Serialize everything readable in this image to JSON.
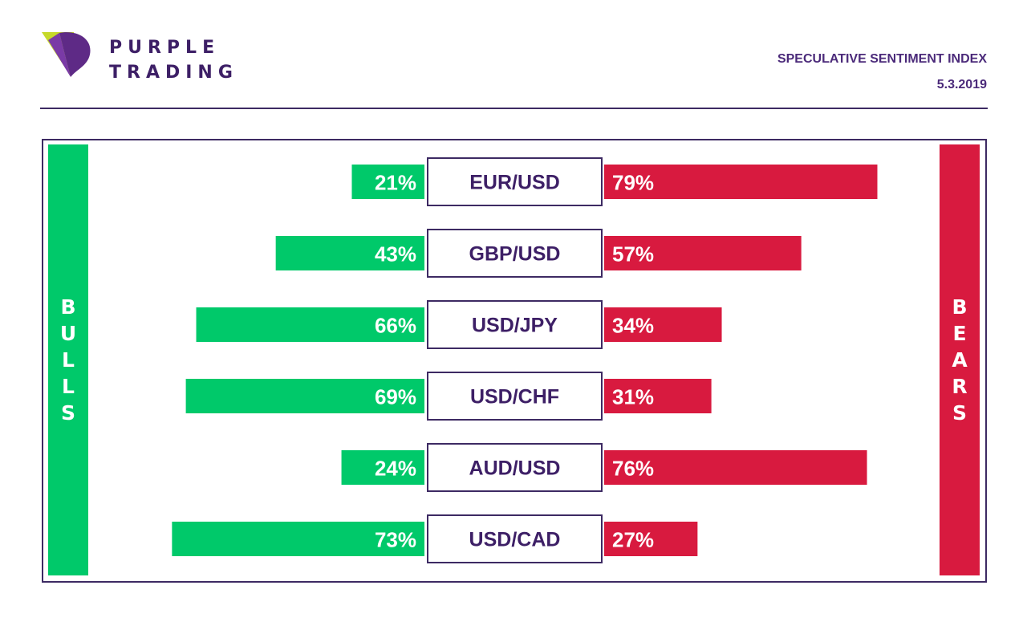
{
  "brand": {
    "line1": "PURPLE",
    "line2": "TRADING"
  },
  "header": {
    "title": "SPECULATIVE SENTIMENT INDEX",
    "date": "5.3.2019"
  },
  "colors": {
    "bulls": "#00c96a",
    "bears": "#d81a3f",
    "frame": "#3d2a63",
    "text": "#3d1f66"
  },
  "side_labels": {
    "bulls": "BULLS",
    "bears": "BEARS"
  },
  "chart_data": {
    "type": "bar",
    "categories": [
      "EUR/USD",
      "GBP/USD",
      "USD/JPY",
      "USD/CHF",
      "AUD/USD",
      "USD/CAD"
    ],
    "series": [
      {
        "name": "BULLS",
        "values": [
          21,
          43,
          66,
          69,
          24,
          73
        ],
        "labels": [
          "21%",
          "43%",
          "66%",
          "69%",
          "24%",
          "73%"
        ]
      },
      {
        "name": "BEARS",
        "values": [
          79,
          57,
          34,
          31,
          76,
          27
        ],
        "labels": [
          "79%",
          "57%",
          "34%",
          "31%",
          "76%",
          "27%"
        ]
      }
    ],
    "xlim": [
      0,
      100
    ]
  }
}
